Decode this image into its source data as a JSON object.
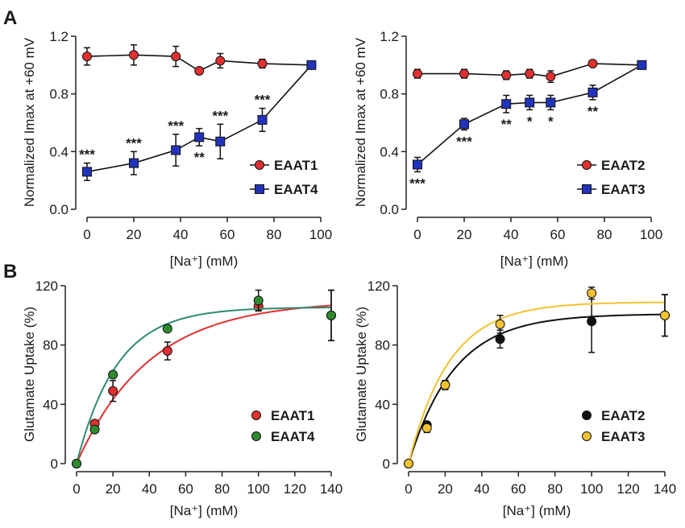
{
  "panel_labels": [
    "A",
    "B"
  ],
  "chart_data": [
    {
      "id": "A-left",
      "type": "line",
      "xlabel": "[Na⁺] (mM)",
      "ylabel": "Normalized Imax at +60 mV",
      "xlim": [
        0,
        100
      ],
      "ylim": [
        0,
        1.2
      ],
      "xticks": [
        "0",
        "20",
        "40",
        "60",
        "80",
        "100"
      ],
      "xtick_values": [
        0,
        20,
        40,
        60,
        80,
        100
      ],
      "yticks": [
        "0.0",
        "0.4",
        "0.8",
        "1.2"
      ],
      "ytick_values": [
        0,
        0.4,
        0.8,
        1.2
      ],
      "legend_position": "bottom-right",
      "series": [
        {
          "name": "EAAT1",
          "marker": "circle",
          "color": "#e03030",
          "x": [
            0,
            20,
            38,
            48,
            57,
            75,
            96
          ],
          "y": [
            1.06,
            1.07,
            1.06,
            0.96,
            1.03,
            1.01,
            1.0
          ],
          "err": [
            0.06,
            0.07,
            0.07,
            0.02,
            0.05,
            0.03,
            0.01
          ],
          "labels": [
            "",
            "",
            "",
            "",
            "",
            "",
            ""
          ]
        },
        {
          "name": "EAAT4",
          "marker": "square",
          "color": "#2233bb",
          "x": [
            0,
            20,
            38,
            48,
            57,
            75,
            96
          ],
          "y": [
            0.26,
            0.32,
            0.41,
            0.5,
            0.47,
            0.62,
            1.0
          ],
          "err": [
            0.06,
            0.08,
            0.11,
            0.06,
            0.12,
            0.08,
            0.01
          ],
          "labels": [
            "***",
            "***",
            "***",
            "**",
            "***",
            "***",
            ""
          ],
          "label_pos": [
            "above",
            "above",
            "above",
            "below",
            "above",
            "above",
            "above"
          ]
        }
      ]
    },
    {
      "id": "A-right",
      "type": "line",
      "xlabel": "[Na⁺] (mM)",
      "ylabel": "Normalized Imax at +60 mV",
      "xlim": [
        0,
        100
      ],
      "ylim": [
        0,
        1.2
      ],
      "xticks": [
        "0",
        "20",
        "40",
        "60",
        "80",
        "100"
      ],
      "xtick_values": [
        0,
        20,
        40,
        60,
        80,
        100
      ],
      "yticks": [
        "0.0",
        "0.4",
        "0.8",
        "1.2"
      ],
      "ytick_values": [
        0,
        0.4,
        0.8,
        1.2
      ],
      "legend_position": "bottom-right",
      "series": [
        {
          "name": "EAAT2",
          "marker": "circle",
          "color": "#e03030",
          "x": [
            0,
            20,
            38,
            48,
            57,
            75,
            96
          ],
          "y": [
            0.94,
            0.94,
            0.93,
            0.94,
            0.92,
            1.01,
            1.0
          ],
          "err": [
            0.03,
            0.03,
            0.03,
            0.03,
            0.04,
            0.02,
            0.01
          ],
          "labels": [
            "",
            "",
            "",
            "",
            "",
            "",
            ""
          ]
        },
        {
          "name": "EAAT3",
          "marker": "square",
          "color": "#2233bb",
          "x": [
            0,
            20,
            38,
            48,
            57,
            75,
            96
          ],
          "y": [
            0.31,
            0.59,
            0.73,
            0.74,
            0.74,
            0.81,
            1.0
          ],
          "err": [
            0.05,
            0.04,
            0.06,
            0.05,
            0.05,
            0.05,
            0.01
          ],
          "labels": [
            "***",
            "***",
            "**",
            "*",
            "*",
            "**",
            ""
          ],
          "label_pos": [
            "below",
            "below",
            "below",
            "below",
            "below",
            "below",
            "below"
          ]
        }
      ]
    },
    {
      "id": "B-left",
      "type": "scatter",
      "xlabel": "[Na⁺] (mM)",
      "ylabel": "Glutamate Uptake (%)",
      "xlim": [
        0,
        140
      ],
      "ylim": [
        0,
        120
      ],
      "xticks": [
        "0",
        "20",
        "40",
        "60",
        "80",
        "100",
        "120",
        "140"
      ],
      "xtick_values": [
        0,
        20,
        40,
        60,
        80,
        100,
        120,
        140
      ],
      "yticks": [
        "0",
        "40",
        "80",
        "120"
      ],
      "ytick_values": [
        0,
        40,
        80,
        120
      ],
      "legend_position": "bottom-right",
      "series": [
        {
          "name": "EAAT1",
          "marker": "circle",
          "color": "#e03030",
          "curve_color": "#e03030",
          "x": [
            0,
            10,
            20,
            50,
            100,
            140
          ],
          "y": [
            0,
            27,
            49,
            76,
            106,
            100
          ],
          "err": [
            0,
            2,
            7,
            6,
            3,
            17
          ],
          "fit": {
            "model": "exp",
            "vmax": 110,
            "k": 0.025
          }
        },
        {
          "name": "EAAT4",
          "marker": "circle",
          "color": "#2e8b2e",
          "curve_color": "#2e8b6e",
          "x": [
            0,
            10,
            20,
            50,
            100,
            140
          ],
          "y": [
            0,
            23,
            60,
            91,
            110,
            100
          ],
          "err": [
            0,
            2,
            2,
            2,
            7,
            17
          ],
          "fit": {
            "model": "exp",
            "vmax": 105.5,
            "k": 0.045
          }
        }
      ]
    },
    {
      "id": "B-right",
      "type": "scatter",
      "xlabel": "[Na⁺] (mM)",
      "ylabel": "Glutamate Uptake (%)",
      "xlim": [
        0,
        140
      ],
      "ylim": [
        0,
        120
      ],
      "xticks": [
        "0",
        "20",
        "40",
        "60",
        "80",
        "100",
        "120",
        "140"
      ],
      "xtick_values": [
        0,
        20,
        40,
        60,
        80,
        100,
        120,
        140
      ],
      "yticks": [
        "0",
        "40",
        "80",
        "120"
      ],
      "ytick_values": [
        0,
        40,
        80,
        120
      ],
      "legend_position": "bottom-right",
      "series": [
        {
          "name": "EAAT2",
          "marker": "circle",
          "color": "#111111",
          "curve_color": "#111111",
          "x": [
            0,
            10,
            20,
            50,
            100,
            140
          ],
          "y": [
            0,
            26,
            53,
            84,
            96,
            100
          ],
          "err": [
            0,
            2,
            3,
            6,
            21,
            14
          ],
          "fit": {
            "model": "exp",
            "vmax": 101,
            "k": 0.04
          }
        },
        {
          "name": "EAAT3",
          "marker": "circle",
          "color": "#f2c230",
          "curve_color": "#f2c230",
          "x": [
            0,
            10,
            20,
            50,
            100,
            140
          ],
          "y": [
            0,
            24,
            53,
            94,
            115,
            100
          ],
          "err": [
            0,
            3,
            3,
            6,
            4,
            14
          ],
          "fit": {
            "model": "exp",
            "vmax": 109,
            "k": 0.045
          }
        }
      ]
    }
  ]
}
